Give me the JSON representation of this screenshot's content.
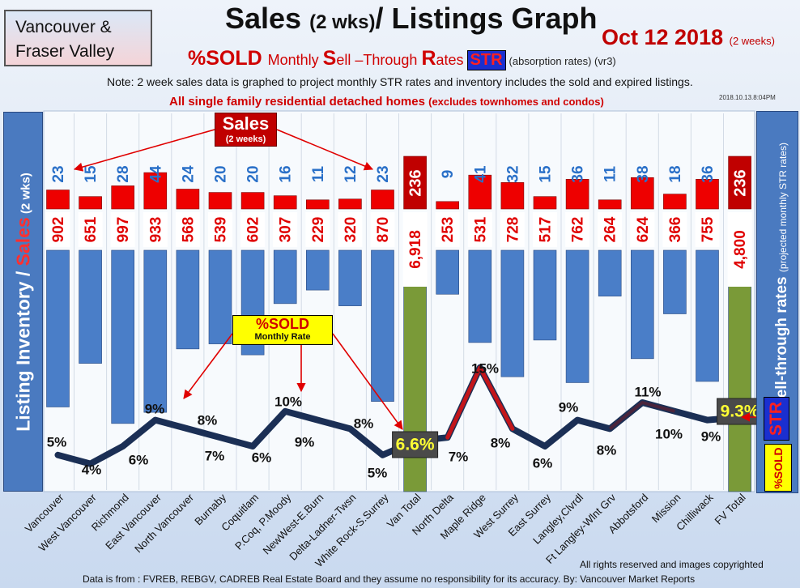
{
  "region_label": {
    "line1": "Vancouver &",
    "line2": "Fraser Valley"
  },
  "title": {
    "main1": "Sales ",
    "small": "(2 wks)",
    "main2": "/ Listings Graph"
  },
  "date": {
    "main": "Oct 12 2018",
    "small": "(2 weeks)"
  },
  "sold_line": {
    "big": "%SOLD",
    "monthly": "Monthly ",
    "s": "S",
    "ell": "ell ",
    "through": "–Through ",
    "r": "R",
    "ates": "ates",
    "str": "STR",
    "absorb": "(absorption rates) ",
    "ver": "(vr3)"
  },
  "note": "Note: 2 week sales data is graphed to project monthly STR rates and inventory includes the sold and expired listings.",
  "subtitle": {
    "main": "All single family residential detached homes ",
    "small": "(excludes townhomes and condos)"
  },
  "timestamp": "2018.10.13.8:04PM",
  "left_axis": {
    "a": "Listing Inventory",
    "b": " / ",
    "c": "Sales",
    "d": " (2 wks)"
  },
  "right_axis": {
    "main": "Sell-through rates",
    "small": "(projected monthly STR rates)"
  },
  "str_badge": "STR",
  "sold_badge": "%SOLD",
  "sales_callout": {
    "a": "Sales",
    "b": "(2 weeks)"
  },
  "sold_callout": {
    "a": "%SOLD",
    "b": "Monthly Rate"
  },
  "rights": "All rights reserved and  images copyrighted",
  "source": "Data is from : FVREB, REBGV, CADREB Real Estate Board and they assume no responsibility for its accuracy. By: Vancouver Market Reports",
  "colors": {
    "sales_bar": "#ee0000",
    "total_bar": "#c00000",
    "inventory_bar": "#4a7ec8",
    "total_inventory_bar": "#7a9a38",
    "str_line": "#1b2f55",
    "str_peak": "#e01010",
    "sales_label": "#2a70c8",
    "inventory_label": "#e00000"
  },
  "chart_data": {
    "type": "bar",
    "categories": [
      "Vancouver",
      "West Vancouver",
      "Richmond",
      "East Vancouver",
      "North Vancouver",
      "Burnaby",
      "Coquitlam",
      "P.Coq, P.Moody",
      "NewWest-E.Burn",
      "Delta-Ladner-Twsn",
      "White Rock-S.Surrey",
      "Van Total",
      "North Delta",
      "Maple Ridge",
      "West Surrey",
      "East Surrey",
      "Langley,Clvrdl",
      "Ft Langley-Wlnt Grv",
      "Abbotsford",
      "Mission",
      "Chilliwack",
      "FV Total"
    ],
    "series": [
      {
        "name": "Sales (2 weeks)",
        "values": [
          23,
          15,
          28,
          44,
          24,
          20,
          20,
          16,
          11,
          12,
          23,
          236,
          9,
          41,
          32,
          15,
          36,
          11,
          38,
          18,
          36,
          236
        ]
      },
      {
        "name": "Listing Inventory",
        "values": [
          902,
          651,
          997,
          933,
          568,
          539,
          602,
          307,
          229,
          320,
          870,
          6918,
          253,
          531,
          728,
          517,
          762,
          264,
          624,
          366,
          755,
          4800
        ]
      },
      {
        "name": "%SOLD Monthly Rate",
        "values": [
          5,
          4,
          6,
          9,
          8,
          7,
          6,
          10,
          9,
          8,
          5,
          6.6,
          7,
          15,
          8,
          6,
          9,
          8,
          11,
          10,
          9,
          9.3
        ]
      }
    ],
    "sales_labels": [
      "23",
      "15",
      "28",
      "44",
      "24",
      "20",
      "20",
      "16",
      "11",
      "12",
      "23",
      "236",
      "9",
      "41",
      "32",
      "15",
      "36",
      "11",
      "38",
      "18",
      "36",
      "236"
    ],
    "inventory_labels": [
      "902",
      "651",
      "997",
      "933",
      "568",
      "539",
      "602",
      "307",
      "229",
      "320",
      "870",
      "6,918",
      "253",
      "531",
      "728",
      "517",
      "762",
      "264",
      "624",
      "366",
      "755",
      "4,800"
    ],
    "str_labels": [
      "5%",
      "4%",
      "6%",
      "9%",
      "8%",
      "7%",
      "6%",
      "10%",
      "9%",
      "8%",
      "5%",
      "6.6%",
      "7%",
      "15%",
      "8%",
      "6%",
      "9%",
      "8%",
      "11%",
      "10%",
      "9%",
      "9.3%"
    ],
    "total_indices": [
      11,
      21
    ],
    "ylabel": "Listing Inventory / Sales (2 wks)",
    "y2label": "Sell-through rates",
    "grid": true
  }
}
